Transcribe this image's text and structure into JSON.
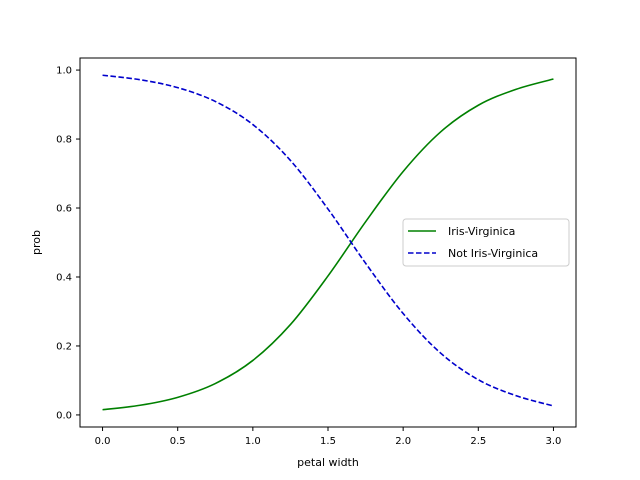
{
  "chart_data": {
    "type": "line",
    "xlabel": "petal width",
    "ylabel": "prob",
    "xlim": [
      -0.15,
      3.15
    ],
    "ylim": [
      -0.035,
      1.035
    ],
    "xticks": [
      "0.0",
      "0.5",
      "1.0",
      "1.5",
      "2.0",
      "2.5",
      "3.0"
    ],
    "yticks": [
      "0.0",
      "0.2",
      "0.4",
      "0.6",
      "0.8",
      "1.0"
    ],
    "grid": false,
    "legend_position": "center-right",
    "series": [
      {
        "name": "Iris-Virginica",
        "color": "#008000",
        "style": "solid",
        "x": [
          0.0,
          0.25,
          0.5,
          0.75,
          1.0,
          1.25,
          1.5,
          1.75,
          2.0,
          2.25,
          2.5,
          2.75,
          3.0
        ],
        "y": [
          0.015,
          0.028,
          0.051,
          0.091,
          0.158,
          0.262,
          0.403,
          0.56,
          0.706,
          0.821,
          0.898,
          0.944,
          0.974
        ]
      },
      {
        "name": "Not Iris-Virginica",
        "color": "#0000cc",
        "style": "dashed",
        "x": [
          0.0,
          0.25,
          0.5,
          0.75,
          1.0,
          1.25,
          1.5,
          1.75,
          2.0,
          2.25,
          2.5,
          2.75,
          3.0
        ],
        "y": [
          0.985,
          0.972,
          0.949,
          0.909,
          0.842,
          0.738,
          0.597,
          0.44,
          0.294,
          0.179,
          0.102,
          0.056,
          0.026
        ]
      }
    ]
  }
}
